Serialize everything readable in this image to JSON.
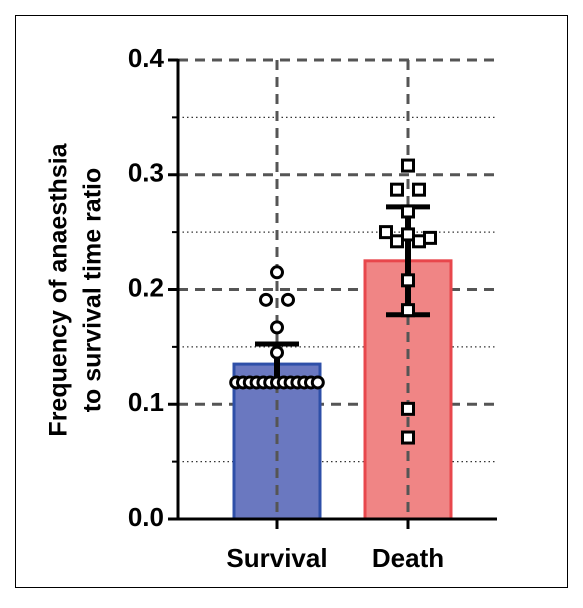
{
  "chart_data": {
    "type": "bar",
    "y_label": [
      "Frequency of anaesthsia",
      "to survival time ratio"
    ],
    "categories": [
      "Survival",
      "Death"
    ],
    "series": [
      {
        "name": "Survival",
        "color": "#6a78c0",
        "edge": "#2e4fa8",
        "marker": "circle",
        "value": 0.135,
        "error": 0.0175,
        "points": [
          0.215,
          0.191,
          0.191,
          0.167,
          0.145,
          0.119,
          0.119,
          0.119,
          0.119,
          0.119,
          0.119,
          0.119,
          0.119,
          0.119,
          0.119,
          0.119,
          0.119,
          0.119
        ]
      },
      {
        "name": "Death",
        "color": "#f08585",
        "edge": "#e8474c",
        "marker": "square",
        "value": 0.225,
        "error": 0.047,
        "points": [
          0.308,
          0.287,
          0.287,
          0.268,
          0.25,
          0.248,
          0.242,
          0.242,
          0.245,
          0.208,
          0.182,
          0.096,
          0.071
        ]
      }
    ],
    "ylim": [
      0,
      0.4
    ],
    "yticks": [
      {
        "value": 0,
        "label": "0.0"
      },
      0.1,
      0.2,
      0.3,
      0.4
    ],
    "minor_grid": [
      0.05,
      0.15,
      0.25,
      0.35
    ],
    "grid": true
  }
}
